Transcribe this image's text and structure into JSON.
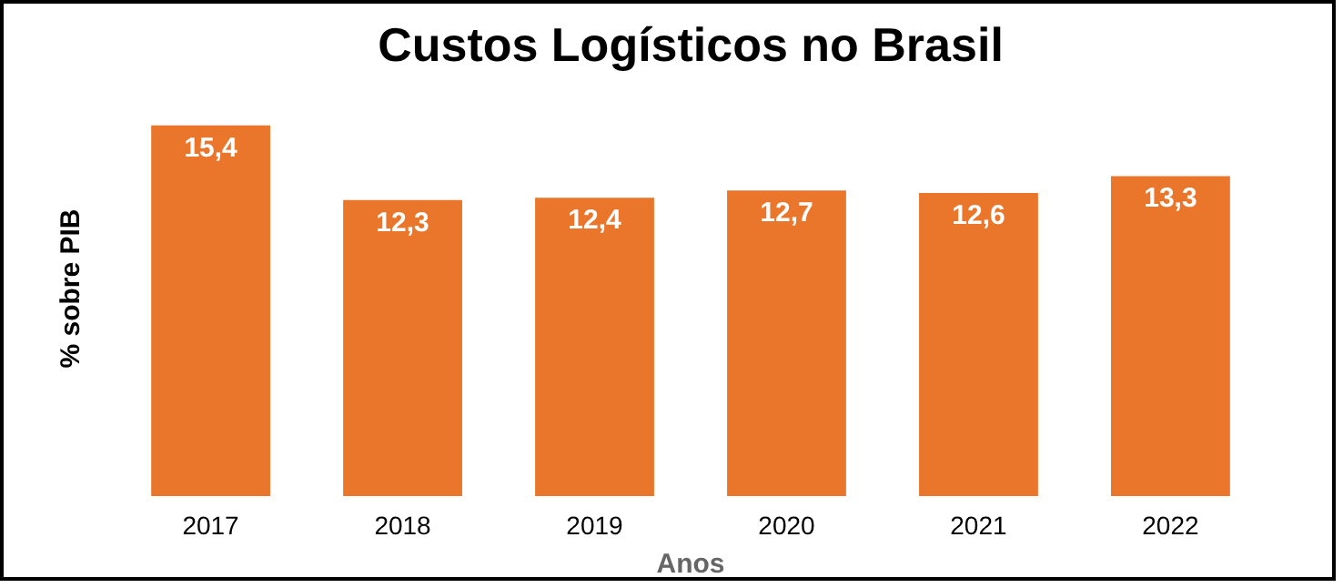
{
  "chart_data": {
    "type": "bar",
    "title": "Custos Logísticos no Brasil",
    "ylabel": "% sobre PIB",
    "xlabel": "Anos",
    "categories": [
      "2017",
      "2018",
      "2019",
      "2020",
      "2021",
      "2022"
    ],
    "values": [
      15.4,
      12.3,
      12.4,
      12.7,
      12.6,
      13.3
    ],
    "value_labels": [
      "15,4",
      "12,3",
      "12,4",
      "12,7",
      "12,6",
      "13,3"
    ],
    "color": "#ea762c",
    "grid": false
  }
}
